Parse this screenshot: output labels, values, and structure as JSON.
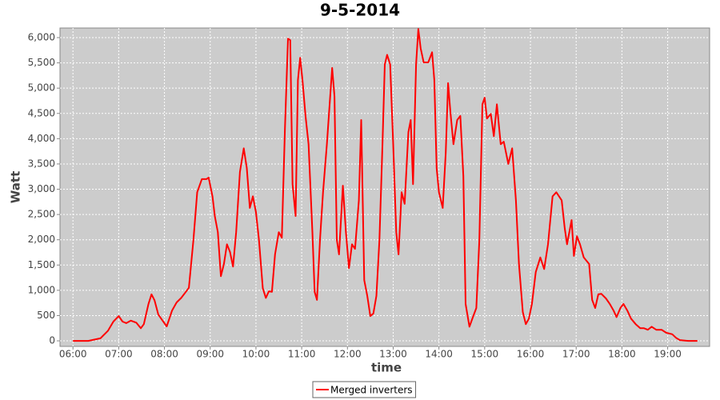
{
  "chart_data": {
    "type": "line",
    "title": "9-5-2014",
    "xlabel": "time",
    "ylabel": "Watt",
    "x": [
      360,
      380,
      396,
      406,
      413,
      420,
      425,
      430,
      436,
      443,
      449,
      453,
      459,
      463,
      467,
      472,
      477,
      483,
      490,
      496,
      502,
      508,
      512,
      518,
      523,
      529,
      535,
      538,
      543,
      546,
      550,
      554,
      558,
      562,
      566,
      570,
      574,
      579,
      584,
      588,
      592,
      596,
      600,
      604,
      609,
      613,
      617,
      621,
      625,
      630,
      634,
      638,
      642,
      645,
      648,
      652,
      655,
      658,
      661,
      665,
      669,
      674,
      677,
      680,
      684,
      688,
      693,
      697,
      700,
      703,
      706,
      709,
      714,
      718,
      722,
      726,
      730,
      735,
      738,
      742,
      746,
      750,
      754,
      758,
      762,
      766,
      769,
      772,
      776,
      780,
      784,
      787,
      791,
      795,
      800,
      803,
      806,
      810,
      813,
      816,
      820,
      826,
      831,
      834,
      837,
      840,
      845,
      849,
      852,
      855,
      859,
      864,
      868,
      872,
      875,
      880,
      885,
      889,
      893,
      897,
      900,
      903,
      908,
      912,
      916,
      921,
      925,
      931,
      936,
      941,
      945,
      950,
      954,
      958,
      962,
      967,
      973,
      978,
      983,
      989,
      994,
      1001,
      1005,
      1008,
      1014,
      1017,
      1021,
      1025,
      1030,
      1037,
      1041,
      1045,
      1049,
      1053,
      1059,
      1064,
      1069,
      1073,
      1078,
      1082,
      1087,
      1092,
      1098,
      1104,
      1109,
      1114,
      1119,
      1125,
      1132,
      1138,
      1146,
      1151,
      1156,
      1167,
      1179
    ],
    "series": [
      {
        "name": "Merged inverters",
        "color": "#ff0000",
        "values": [
          0,
          0,
          50,
          200,
          380,
          490,
          380,
          350,
          400,
          360,
          250,
          330,
          730,
          920,
          800,
          520,
          410,
          285,
          600,
          760,
          850,
          970,
          1050,
          2000,
          2940,
          3200,
          3200,
          3230,
          2860,
          2470,
          2150,
          1280,
          1520,
          1910,
          1760,
          1470,
          2150,
          3340,
          3810,
          3420,
          2630,
          2860,
          2550,
          2000,
          1040,
          850,
          980,
          970,
          1710,
          2150,
          2040,
          4210,
          5980,
          5950,
          3100,
          2470,
          5160,
          5600,
          5160,
          4450,
          3890,
          2150,
          970,
          810,
          2000,
          2940,
          3890,
          4760,
          5400,
          4840,
          2000,
          1710,
          3070,
          2150,
          1440,
          1910,
          1820,
          2780,
          4370,
          1200,
          890,
          490,
          540,
          890,
          2000,
          3890,
          5470,
          5660,
          5470,
          3890,
          2150,
          1710,
          2940,
          2710,
          4130,
          4370,
          3100,
          5470,
          6170,
          5790,
          5510,
          5510,
          5710,
          5160,
          3420,
          2940,
          2630,
          3730,
          5100,
          4530,
          3890,
          4370,
          4450,
          3260,
          730,
          280,
          490,
          650,
          2000,
          4680,
          4810,
          4400,
          4490,
          4050,
          4680,
          3890,
          3940,
          3500,
          3810,
          2780,
          1520,
          570,
          330,
          440,
          730,
          1360,
          1650,
          1420,
          1910,
          2860,
          2940,
          2780,
          2230,
          1910,
          2390,
          1680,
          2070,
          1910,
          1650,
          1520,
          810,
          650,
          920,
          930,
          840,
          730,
          600,
          470,
          650,
          730,
          600,
          440,
          330,
          250,
          250,
          220,
          280,
          220,
          220,
          160,
          130,
          60,
          15,
          0,
          0
        ]
      }
    ],
    "xlim": [
      343,
      1195
    ],
    "xticks": [
      {
        "value": 360,
        "label": "06:00"
      },
      {
        "value": 420,
        "label": "07:00"
      },
      {
        "value": 480,
        "label": "08:00"
      },
      {
        "value": 540,
        "label": "09:00"
      },
      {
        "value": 600,
        "label": "10:00"
      },
      {
        "value": 660,
        "label": "11:00"
      },
      {
        "value": 720,
        "label": "12:00"
      },
      {
        "value": 780,
        "label": "13:00"
      },
      {
        "value": 840,
        "label": "14:00"
      },
      {
        "value": 900,
        "label": "15:00"
      },
      {
        "value": 960,
        "label": "16:00"
      },
      {
        "value": 1020,
        "label": "17:00"
      },
      {
        "value": 1080,
        "label": "18:00"
      },
      {
        "value": 1140,
        "label": "19:00"
      }
    ],
    "ylim": [
      -110,
      6190
    ],
    "yticks": [
      0,
      500,
      {
        "value": 1000,
        "label": "1,000"
      },
      {
        "value": 1500,
        "label": "1,500"
      },
      {
        "value": 2000,
        "label": "2,000"
      },
      {
        "value": 2500,
        "label": "2,500"
      },
      {
        "value": 3000,
        "label": "3,000"
      },
      {
        "value": 3500,
        "label": "3,500"
      },
      {
        "value": 4000,
        "label": "4,000"
      },
      {
        "value": 4500,
        "label": "4,500"
      },
      {
        "value": 5000,
        "label": "5,000"
      },
      {
        "value": 5500,
        "label": "5,500"
      },
      {
        "value": 6000,
        "label": "6,000"
      }
    ],
    "grid": true,
    "legend": "bottom"
  }
}
